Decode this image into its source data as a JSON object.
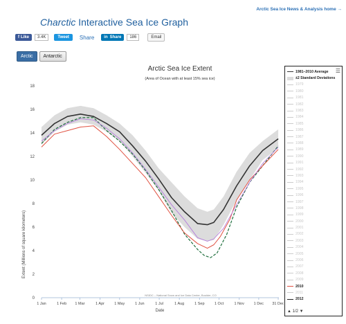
{
  "header": {
    "top_link": "Arctic Sea Ice News & Analysis home →",
    "title_brand": "Charctic",
    "title_rest": " Interactive Sea Ice Graph"
  },
  "social": {
    "fb_label": "Like",
    "fb_count": "3.4K",
    "tweet_label": "Tweet",
    "share_label": "Share",
    "linkedin_label": "Share",
    "linkedin_count": "186",
    "email_label": "Email"
  },
  "tabs": [
    {
      "label": "Arctic",
      "active": true
    },
    {
      "label": "Antarctic",
      "active": false
    }
  ],
  "colors": {
    "average": "#333333",
    "std_band": "#dcdcdc",
    "y2010": "#e05040",
    "y2012": "#222222",
    "y2011": "#b57edc",
    "y2007": "#1e6e3c",
    "accent": "#3a6ea5"
  },
  "chart_data": {
    "type": "line",
    "title": "Arctic Sea Ice Extent",
    "subtitle": "(Area of Ocean with at least 15% sea ice)",
    "ylabel": "Extent (Millions of square kilometers)",
    "xlabel": "Date",
    "credit": "NSIDC – National Snow and Ice Data Center, Boulder, CO",
    "ylim": [
      0,
      18
    ],
    "yticks": [
      0,
      2,
      4,
      6,
      8,
      10,
      12,
      14,
      16,
      18
    ],
    "xlim": [
      0,
      365
    ],
    "xticks": [
      {
        "label": "1 Jan",
        "day": 0
      },
      {
        "label": "1 Feb",
        "day": 31
      },
      {
        "label": "1 Mar",
        "day": 59
      },
      {
        "label": "1 Apr",
        "day": 90
      },
      {
        "label": "1 May",
        "day": 120
      },
      {
        "label": "1 Jun",
        "day": 151
      },
      {
        "label": "1 Jul",
        "day": 181
      },
      {
        "label": "1 Aug",
        "day": 212
      },
      {
        "label": "1 Sep",
        "day": 243
      },
      {
        "label": "1 Oct",
        "day": 273
      },
      {
        "label": "1 Nov",
        "day": 304
      },
      {
        "label": "1 Dec",
        "day": 334
      },
      {
        "label": "31 Dec",
        "day": 364
      }
    ],
    "grid": false,
    "legend_position": "right",
    "band": {
      "name": "±2 Standard Deviations",
      "x": [
        0,
        20,
        40,
        60,
        80,
        100,
        120,
        140,
        160,
        180,
        200,
        220,
        240,
        255,
        265,
        280,
        300,
        320,
        340,
        364
      ],
      "upper": [
        14.5,
        15.5,
        16.1,
        16.3,
        16.1,
        15.5,
        14.8,
        13.8,
        12.5,
        11.0,
        9.8,
        8.6,
        7.6,
        7.3,
        7.5,
        8.6,
        10.7,
        12.3,
        13.3,
        14.3
      ],
      "lower": [
        13.0,
        14.1,
        14.7,
        14.9,
        14.7,
        14.1,
        13.3,
        12.0,
        10.6,
        9.1,
        7.2,
        6.0,
        5.0,
        4.8,
        4.9,
        6.2,
        8.3,
        10.0,
        11.7,
        12.7
      ]
    },
    "series": [
      {
        "name": "1981-2010 Average",
        "style": "solid",
        "width": 1.6,
        "x": [
          0,
          20,
          40,
          60,
          80,
          100,
          120,
          140,
          160,
          180,
          200,
          220,
          240,
          255,
          265,
          280,
          300,
          320,
          340,
          364
        ],
        "values": [
          13.8,
          14.8,
          15.4,
          15.6,
          15.4,
          14.8,
          14.1,
          12.9,
          11.6,
          10.1,
          8.5,
          7.3,
          6.3,
          6.2,
          6.4,
          7.5,
          9.5,
          11.2,
          12.5,
          13.5
        ]
      },
      {
        "name": "2007",
        "style": "dashed",
        "width": 1.2,
        "x": [
          0,
          20,
          40,
          60,
          80,
          100,
          120,
          140,
          160,
          180,
          200,
          220,
          240,
          250,
          260,
          270,
          285,
          300,
          320,
          340,
          364
        ],
        "values": [
          13.1,
          14.3,
          14.9,
          15.3,
          15.3,
          14.2,
          13.3,
          12.2,
          10.8,
          9.2,
          7.4,
          5.4,
          4.1,
          3.6,
          3.4,
          3.8,
          5.4,
          7.7,
          9.8,
          11.2,
          12.9
        ]
      },
      {
        "name": "2010",
        "style": "solid",
        "width": 1.0,
        "x": [
          0,
          20,
          40,
          60,
          80,
          100,
          120,
          140,
          160,
          180,
          200,
          220,
          240,
          255,
          265,
          275,
          290,
          300,
          320,
          340,
          364
        ],
        "values": [
          12.8,
          13.9,
          14.2,
          14.5,
          14.6,
          13.7,
          12.6,
          11.4,
          10.2,
          8.6,
          7.0,
          5.5,
          4.6,
          4.2,
          4.5,
          5.2,
          6.7,
          8.3,
          10.0,
          11.2,
          12.6
        ]
      },
      {
        "name": "2012",
        "style": "solid",
        "width": 0.9,
        "x": [
          0,
          20,
          40,
          60,
          80,
          100,
          120,
          140,
          160,
          180,
          200,
          220,
          240,
          255,
          265,
          280,
          300,
          320,
          340,
          364
        ],
        "values": [
          13.3,
          14.2,
          14.8,
          15.2,
          15.1,
          14.4,
          13.5,
          12.3,
          10.9,
          9.4,
          7.9,
          6.6,
          5.1,
          4.8,
          5.0,
          5.9,
          7.9,
          9.8,
          11.4,
          12.8
        ]
      }
    ]
  },
  "legend": {
    "items": [
      {
        "label": "1981–2010 Average",
        "kind": "avg"
      },
      {
        "label": "±2 Standard Deviations",
        "kind": "band"
      },
      {
        "label": "1979",
        "kind": "dim"
      },
      {
        "label": "1980",
        "kind": "dim"
      },
      {
        "label": "1981",
        "kind": "dim"
      },
      {
        "label": "1982",
        "kind": "dim"
      },
      {
        "label": "1983",
        "kind": "dim"
      },
      {
        "label": "1984",
        "kind": "dim"
      },
      {
        "label": "1985",
        "kind": "dim"
      },
      {
        "label": "1986",
        "kind": "dim"
      },
      {
        "label": "1987",
        "kind": "dim"
      },
      {
        "label": "1988",
        "kind": "dim"
      },
      {
        "label": "1989",
        "kind": "dim"
      },
      {
        "label": "1990",
        "kind": "dim"
      },
      {
        "label": "1991",
        "kind": "dim"
      },
      {
        "label": "1992",
        "kind": "dim"
      },
      {
        "label": "1993",
        "kind": "dim"
      },
      {
        "label": "1994",
        "kind": "dim"
      },
      {
        "label": "1995",
        "kind": "dim"
      },
      {
        "label": "1996",
        "kind": "dim"
      },
      {
        "label": "1997",
        "kind": "dim"
      },
      {
        "label": "1998",
        "kind": "dim"
      },
      {
        "label": "1999",
        "kind": "dim"
      },
      {
        "label": "2000",
        "kind": "dim"
      },
      {
        "label": "2001",
        "kind": "dim"
      },
      {
        "label": "2002",
        "kind": "dim"
      },
      {
        "label": "2003",
        "kind": "dim"
      },
      {
        "label": "2004",
        "kind": "dim"
      },
      {
        "label": "2005",
        "kind": "dim"
      },
      {
        "label": "2006",
        "kind": "dim"
      },
      {
        "label": "2007",
        "kind": "dim"
      },
      {
        "label": "2008",
        "kind": "dim"
      },
      {
        "label": "2009",
        "kind": "dim"
      },
      {
        "label": "2010",
        "kind": "y2010"
      },
      {
        "label": "2011",
        "kind": "dim"
      },
      {
        "label": "2012",
        "kind": "y2012"
      }
    ],
    "pager": "1/2"
  }
}
